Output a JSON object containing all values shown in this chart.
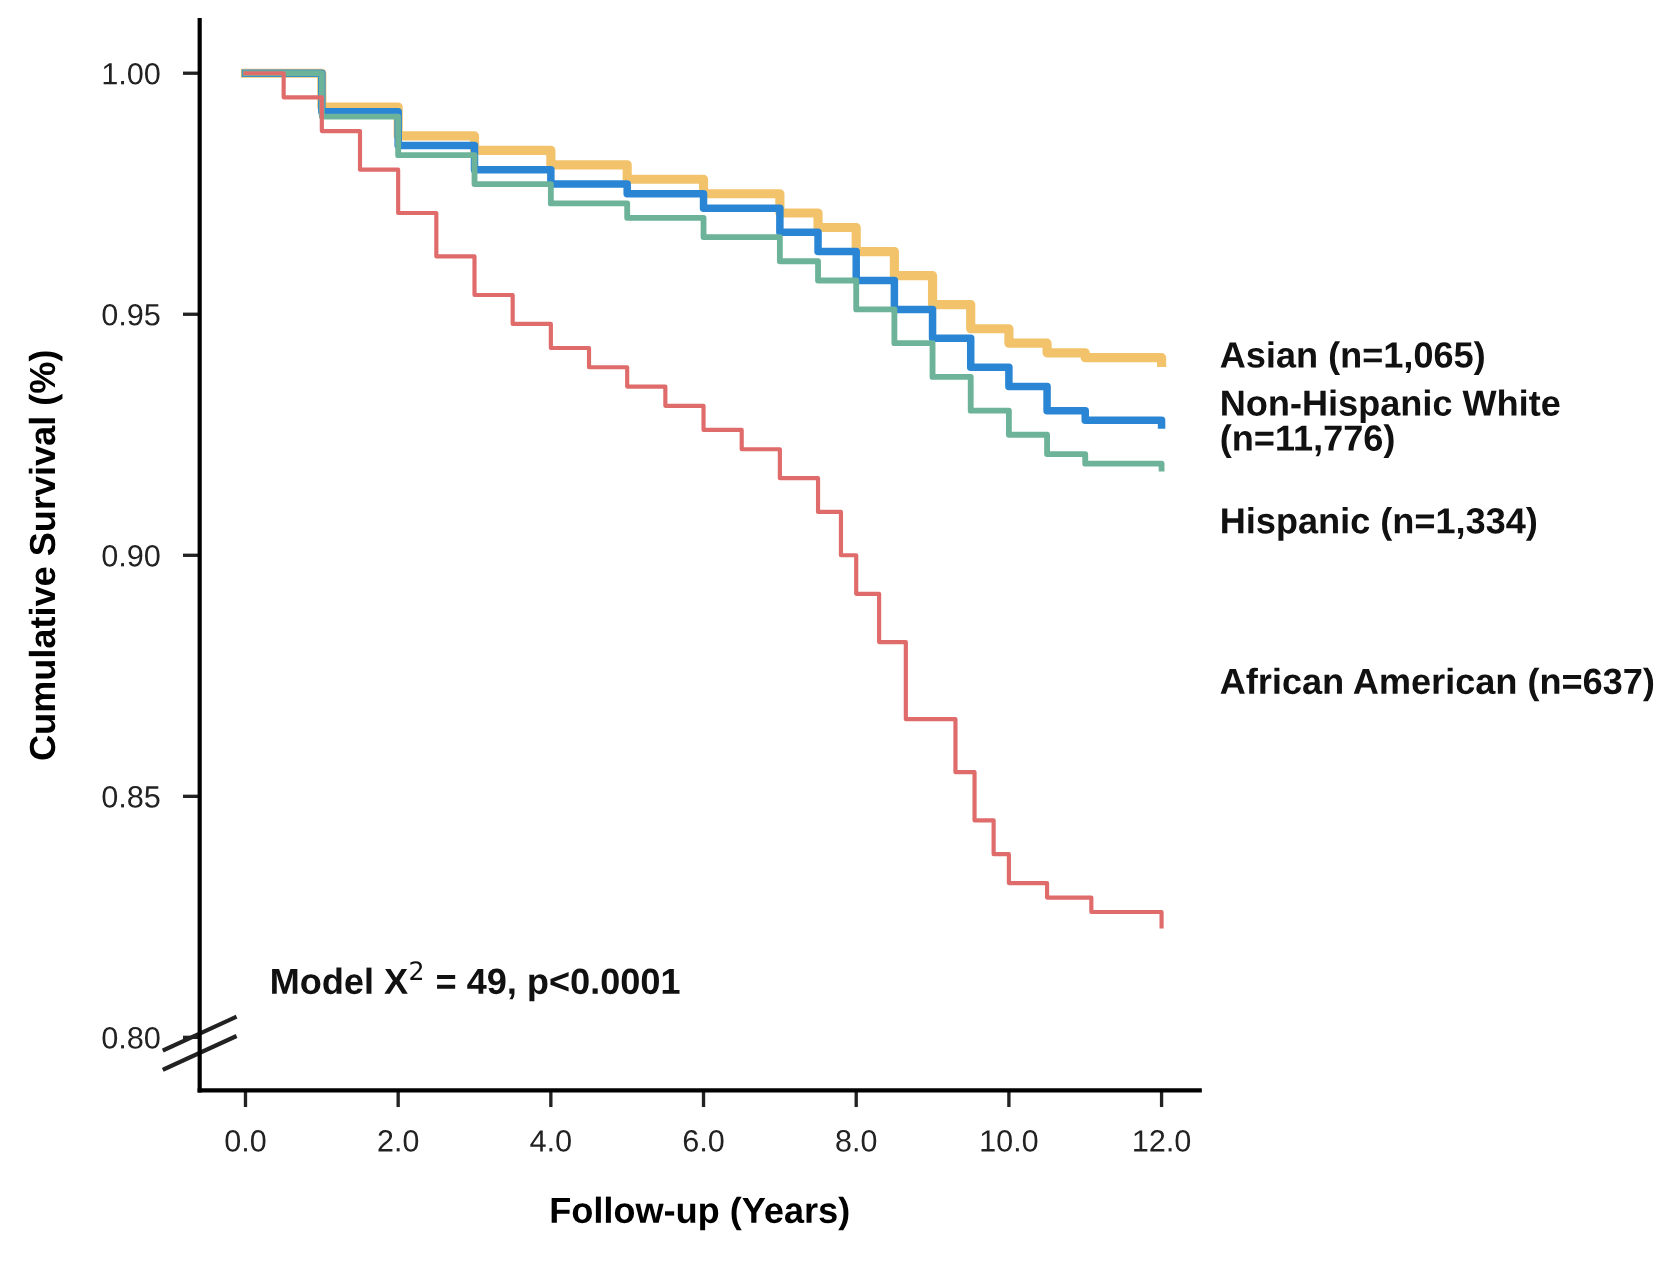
{
  "chart_data": {
    "type": "step",
    "xlabel": "Follow-up (Years)",
    "ylabel": "Cumulative Survival (%)",
    "xlim": [
      -0.6,
      12.5
    ],
    "ylim": [
      0.789,
      1.011
    ],
    "xticks": [
      {
        "value": 0,
        "label": "0.0"
      },
      {
        "value": 2,
        "label": "2.0"
      },
      {
        "value": 4,
        "label": "4.0"
      },
      {
        "value": 6,
        "label": "6.0"
      },
      {
        "value": 8,
        "label": "8.0"
      },
      {
        "value": 10,
        "label": "10.0"
      },
      {
        "value": 12,
        "label": "12.0"
      }
    ],
    "yticks": [
      {
        "value": 0.8,
        "label": "0.80"
      },
      {
        "value": 0.85,
        "label": "0.85"
      },
      {
        "value": 0.9,
        "label": "0.90"
      },
      {
        "value": 0.95,
        "label": "0.95"
      },
      {
        "value": 1.0,
        "label": "1.00"
      }
    ],
    "grid": false,
    "legend": false,
    "annotations": [
      "Model X$^{2}$ = 49, p<0.0001"
    ],
    "series": [
      {
        "name": "Asian (n=1,065)",
        "color": "#f2c36b",
        "x": [
          0,
          1,
          2,
          3,
          4,
          5,
          6,
          7,
          7.5,
          8,
          8.5,
          9,
          9.5,
          10,
          10.5,
          11,
          12
        ],
        "values": [
          1.0,
          0.993,
          0.987,
          0.984,
          0.981,
          0.978,
          0.975,
          0.971,
          0.968,
          0.963,
          0.958,
          0.952,
          0.947,
          0.944,
          0.942,
          0.941,
          0.94
        ]
      },
      {
        "name": "Non-Hispanic White\n(n=11,776)",
        "color": "#2a86d4",
        "x": [
          0,
          1,
          2,
          3,
          4,
          5,
          6,
          7,
          7.5,
          8,
          8.5,
          9,
          9.5,
          10,
          10.5,
          11,
          12
        ],
        "values": [
          1.0,
          0.992,
          0.985,
          0.98,
          0.977,
          0.975,
          0.972,
          0.967,
          0.963,
          0.957,
          0.951,
          0.945,
          0.939,
          0.935,
          0.93,
          0.928,
          0.927
        ]
      },
      {
        "name": "Hispanic (n=1,334)",
        "color": "#6db39a",
        "x": [
          0,
          1,
          2,
          3,
          4,
          5,
          6,
          7,
          7.5,
          8,
          8.5,
          9,
          9.5,
          10,
          10.5,
          11,
          12
        ],
        "values": [
          1.0,
          0.991,
          0.983,
          0.977,
          0.973,
          0.97,
          0.966,
          0.961,
          0.957,
          0.951,
          0.944,
          0.937,
          0.93,
          0.925,
          0.921,
          0.919,
          0.918
        ]
      },
      {
        "name": "African American (n=637)",
        "color": "#e06b6b",
        "x": [
          0,
          0.5,
          1,
          1.5,
          2,
          2.5,
          3,
          3.5,
          4,
          4.5,
          5,
          5.5,
          6,
          6.5,
          7,
          7.5,
          7.8,
          8,
          8.3,
          8.65,
          9.1,
          9.3,
          9.55,
          9.8,
          10,
          10.5,
          11.08,
          11.9,
          12
        ],
        "values": [
          1.0,
          0.995,
          0.988,
          0.98,
          0.971,
          0.962,
          0.954,
          0.948,
          0.943,
          0.939,
          0.935,
          0.931,
          0.926,
          0.922,
          0.916,
          0.909,
          0.9,
          0.892,
          0.882,
          0.866,
          0.866,
          0.855,
          0.845,
          0.838,
          0.832,
          0.829,
          0.826,
          0.826,
          0.823
        ]
      }
    ]
  }
}
